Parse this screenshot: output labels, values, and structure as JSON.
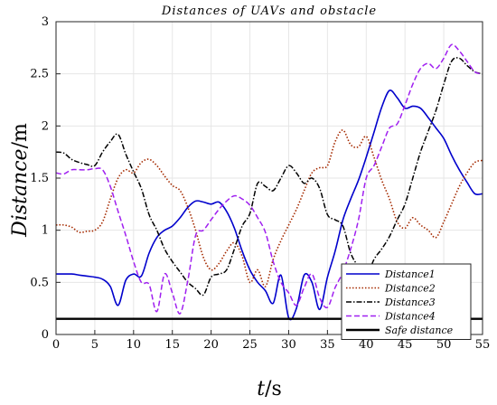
{
  "chart_data": {
    "type": "line",
    "title": "Distances  of  UAVs  and  obstacle",
    "xlabel_italic": "t",
    "xlabel_unit": "/s",
    "ylabel_italic": "Distance",
    "ylabel_unit": "/m",
    "xlim": [
      0,
      55
    ],
    "ylim": [
      0,
      3
    ],
    "xticks": [
      0,
      5,
      10,
      15,
      20,
      25,
      30,
      35,
      40,
      45,
      50,
      55
    ],
    "yticks": [
      0,
      0.5,
      1,
      1.5,
      2,
      2.5,
      3
    ],
    "grid": true,
    "legend_position": "bottom-right",
    "series": [
      {
        "name": "Distance1",
        "color": "#0000cc",
        "dash": "solid",
        "x": [
          0,
          2,
          3,
          4,
          5,
          6,
          7,
          8,
          9,
          10,
          11,
          12,
          13,
          14,
          15,
          16,
          17,
          18,
          19,
          20,
          21,
          22,
          23,
          24,
          25,
          26,
          27,
          28,
          29,
          30,
          31,
          32,
          33,
          34,
          35,
          36,
          37,
          38,
          39,
          40,
          41,
          42,
          43,
          44,
          45,
          46,
          47,
          48,
          49,
          50,
          51,
          52,
          53,
          54,
          55
        ],
        "y": [
          0.58,
          0.58,
          0.57,
          0.56,
          0.55,
          0.53,
          0.46,
          0.28,
          0.52,
          0.58,
          0.56,
          0.78,
          0.93,
          1.0,
          1.04,
          1.12,
          1.22,
          1.28,
          1.27,
          1.25,
          1.27,
          1.18,
          1.02,
          0.8,
          0.62,
          0.5,
          0.42,
          0.3,
          0.57,
          0.16,
          0.25,
          0.57,
          0.5,
          0.24,
          0.55,
          0.8,
          1.1,
          1.3,
          1.48,
          1.7,
          1.94,
          2.18,
          2.34,
          2.27,
          2.17,
          2.19,
          2.17,
          2.08,
          1.98,
          1.88,
          1.72,
          1.58,
          1.46,
          1.35,
          1.35
        ]
      },
      {
        "name": "Distance2",
        "color": "#a52a00",
        "dash": "dotted",
        "x": [
          0,
          1,
          2,
          3,
          4,
          5,
          6,
          7,
          8,
          9,
          10,
          11,
          12,
          13,
          14,
          15,
          16,
          17,
          18,
          19,
          20,
          21,
          22,
          23,
          24,
          25,
          26,
          27,
          28,
          29,
          30,
          31,
          32,
          33,
          34,
          35,
          36,
          37,
          38,
          39,
          40,
          41,
          42,
          43,
          44,
          45,
          46,
          47,
          48,
          49,
          50,
          51,
          52,
          53,
          54,
          55
        ],
        "y": [
          1.05,
          1.05,
          1.03,
          0.98,
          0.99,
          1.0,
          1.08,
          1.3,
          1.5,
          1.58,
          1.55,
          1.65,
          1.68,
          1.62,
          1.52,
          1.43,
          1.38,
          1.22,
          1.0,
          0.74,
          0.62,
          0.68,
          0.8,
          0.88,
          0.75,
          0.5,
          0.62,
          0.46,
          0.72,
          0.9,
          1.05,
          1.2,
          1.38,
          1.55,
          1.6,
          1.62,
          1.85,
          1.96,
          1.82,
          1.8,
          1.9,
          1.7,
          1.48,
          1.3,
          1.08,
          1.02,
          1.12,
          1.05,
          1.0,
          0.93,
          1.08,
          1.25,
          1.42,
          1.55,
          1.65,
          1.67
        ]
      },
      {
        "name": "Distance3",
        "color": "#000000",
        "dash": "dashdot",
        "x": [
          0,
          1,
          2,
          3,
          4,
          5,
          6,
          7,
          8,
          9,
          10,
          11,
          12,
          13,
          14,
          15,
          16,
          17,
          18,
          19,
          20,
          21,
          22,
          23,
          24,
          25,
          26,
          27,
          28,
          29,
          30,
          31,
          32,
          33,
          34,
          35,
          36,
          37,
          38,
          39,
          40,
          41,
          42,
          43,
          44,
          45,
          46,
          47,
          48,
          49,
          50,
          51,
          52,
          53,
          54,
          55
        ],
        "y": [
          1.75,
          1.74,
          1.68,
          1.65,
          1.63,
          1.62,
          1.75,
          1.85,
          1.92,
          1.73,
          1.56,
          1.4,
          1.15,
          1.0,
          0.82,
          0.7,
          0.6,
          0.5,
          0.44,
          0.38,
          0.55,
          0.58,
          0.62,
          0.82,
          1.04,
          1.16,
          1.45,
          1.42,
          1.38,
          1.5,
          1.62,
          1.55,
          1.45,
          1.5,
          1.4,
          1.15,
          1.1,
          1.04,
          0.78,
          0.65,
          0.55,
          0.72,
          0.82,
          0.94,
          1.1,
          1.25,
          1.5,
          1.75,
          1.95,
          2.15,
          2.4,
          2.62,
          2.65,
          2.58,
          2.52,
          2.5
        ]
      },
      {
        "name": "Distance4",
        "color": "#a020f0",
        "dash": "dashed",
        "x": [
          0,
          1,
          2,
          3,
          4,
          5,
          6,
          7,
          8,
          9,
          10,
          11,
          12,
          13,
          14,
          15,
          16,
          17,
          18,
          19,
          20,
          21,
          22,
          23,
          24,
          25,
          26,
          27,
          28,
          29,
          30,
          31,
          32,
          33,
          34,
          35,
          36,
          37,
          38,
          39,
          40,
          41,
          42,
          43,
          44,
          45,
          46,
          47,
          48,
          49,
          50,
          51,
          52,
          53,
          54,
          55
        ],
        "y": [
          1.55,
          1.54,
          1.58,
          1.58,
          1.58,
          1.59,
          1.58,
          1.42,
          1.18,
          0.95,
          0.7,
          0.5,
          0.48,
          0.22,
          0.58,
          0.4,
          0.2,
          0.52,
          0.95,
          1.0,
          1.1,
          1.2,
          1.28,
          1.33,
          1.3,
          1.24,
          1.12,
          0.98,
          0.7,
          0.5,
          0.4,
          0.28,
          0.45,
          0.58,
          0.35,
          0.26,
          0.45,
          0.6,
          0.82,
          1.1,
          1.5,
          1.62,
          1.8,
          1.98,
          2.02,
          2.2,
          2.4,
          2.55,
          2.6,
          2.55,
          2.65,
          2.78,
          2.72,
          2.62,
          2.52,
          2.5
        ]
      },
      {
        "name": "Safe  distance",
        "color": "#000000",
        "dash": "solid-thick",
        "x": [
          0,
          55
        ],
        "y": [
          0.15,
          0.15
        ]
      }
    ]
  }
}
